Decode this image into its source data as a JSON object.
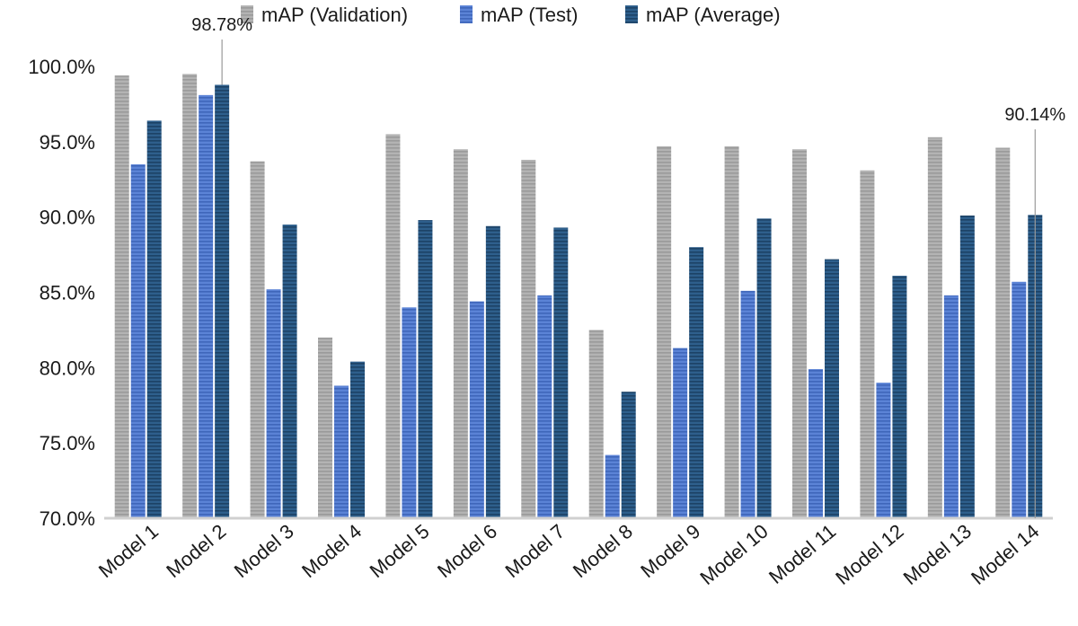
{
  "chart_data": {
    "type": "bar",
    "title": "",
    "xlabel": "",
    "ylabel": "",
    "ylim": [
      70,
      100
    ],
    "yticks": [
      70,
      75,
      80,
      85,
      90,
      95,
      100
    ],
    "ytick_labels": [
      "70.0%",
      "75.0%",
      "80.0%",
      "85.0%",
      "90.0%",
      "95.0%",
      "100.0%"
    ],
    "grid": false,
    "legend_position": "top",
    "categories": [
      "Model 1",
      "Model 2",
      "Model 3",
      "Model 4",
      "Model 5",
      "Model 6",
      "Model 7",
      "Model 8",
      "Model 9",
      "Model 10",
      "Model 11",
      "Model 12",
      "Model 13",
      "Model 14"
    ],
    "series": [
      {
        "name": "mAP (Validation)",
        "color": "#b3b3b3",
        "stripe": "#9a9a9a",
        "values": [
          99.4,
          99.5,
          93.7,
          82.0,
          95.5,
          94.5,
          93.8,
          82.5,
          94.7,
          94.7,
          94.5,
          93.1,
          95.3,
          94.6
        ]
      },
      {
        "name": "mAP (Test)",
        "color": "#5b83d6",
        "stripe": "#3f66ba",
        "values": [
          93.5,
          98.1,
          85.2,
          78.8,
          84.0,
          84.4,
          84.8,
          74.2,
          81.3,
          85.1,
          79.9,
          79.0,
          84.8,
          85.7
        ]
      },
      {
        "name": "mAP (Average)",
        "color": "#2e5f8c",
        "stripe": "#1c4266",
        "values": [
          96.4,
          98.78,
          89.5,
          80.4,
          89.8,
          89.4,
          89.3,
          78.4,
          88.0,
          89.9,
          87.2,
          86.1,
          90.1,
          90.14
        ]
      }
    ],
    "annotations": [
      {
        "text": "98.78%",
        "category": "Model 2",
        "series": "mAP (Average)",
        "value": 98.78
      },
      {
        "text": "90.14%",
        "category": "Model 14",
        "series": "mAP (Average)",
        "value": 90.14
      }
    ]
  }
}
